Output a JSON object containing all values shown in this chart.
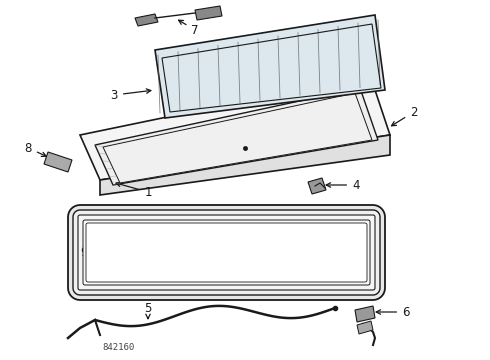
{
  "bg_color": "#ffffff",
  "line_color": "#1a1a1a",
  "diagram_id": "842160",
  "figsize": [
    4.9,
    3.6
  ],
  "dpi": 100
}
